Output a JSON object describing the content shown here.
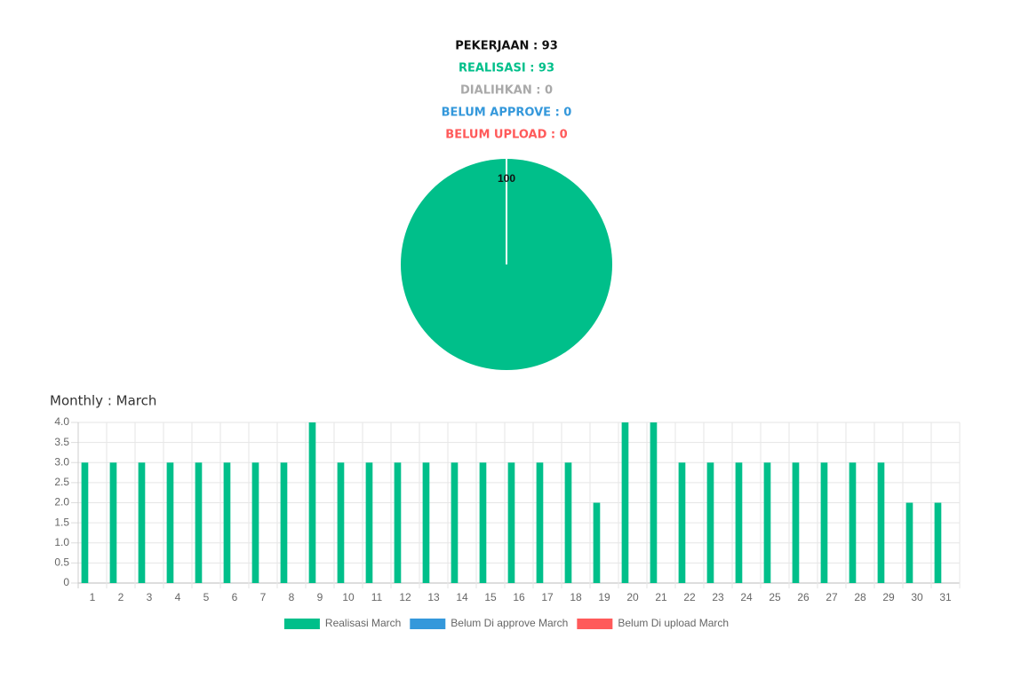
{
  "summary": [
    {
      "text": "PEKERJAAN : 93",
      "color": "#111111"
    },
    {
      "text": "REALISASI : 93",
      "color": "#00bf8a"
    },
    {
      "text": "DIALIHKAN : 0",
      "color": "#a9a9a9"
    },
    {
      "text": "BELUM APPROVE : 0",
      "color": "#3498db"
    },
    {
      "text": "BELUM UPLOAD : 0",
      "color": "#ff5a5a"
    }
  ],
  "chart_data": [
    {
      "type": "pie",
      "values": [
        100
      ],
      "colors": [
        "#00bf8a"
      ]
    },
    {
      "type": "bar",
      "title": "Monthly : March",
      "categories": [
        "1",
        "2",
        "3",
        "4",
        "5",
        "6",
        "7",
        "8",
        "9",
        "10",
        "11",
        "12",
        "13",
        "14",
        "15",
        "16",
        "17",
        "18",
        "19",
        "20",
        "21",
        "22",
        "23",
        "24",
        "25",
        "26",
        "27",
        "28",
        "29",
        "30",
        "31"
      ],
      "series": [
        {
          "name": "Realisasi March",
          "color": "#00bf8a",
          "values": [
            3,
            3,
            3,
            3,
            3,
            3,
            3,
            3,
            4,
            3,
            3,
            3,
            3,
            3,
            3,
            3,
            3,
            3,
            2,
            4,
            4,
            3,
            3,
            3,
            3,
            3,
            3,
            3,
            3,
            2,
            2
          ]
        },
        {
          "name": "Belum Di approve March",
          "color": "#3498db",
          "values": [
            0,
            0,
            0,
            0,
            0,
            0,
            0,
            0,
            0,
            0,
            0,
            0,
            0,
            0,
            0,
            0,
            0,
            0,
            0,
            0,
            0,
            0,
            0,
            0,
            0,
            0,
            0,
            0,
            0,
            0,
            0
          ]
        },
        {
          "name": "Belum Di upload March",
          "color": "#ff5a5a",
          "values": [
            0,
            0,
            0,
            0,
            0,
            0,
            0,
            0,
            0,
            0,
            0,
            0,
            0,
            0,
            0,
            0,
            0,
            0,
            0,
            0,
            0,
            0,
            0,
            0,
            0,
            0,
            0,
            0,
            0,
            0,
            0
          ]
        }
      ],
      "ylim": [
        0,
        4
      ],
      "yticks": [
        0,
        0.5,
        {
          "value": 1,
          "label": "1.0"
        },
        1.5,
        {
          "value": 2,
          "label": "2.0"
        },
        2.5,
        {
          "value": 3,
          "label": "3.0"
        },
        3.5,
        {
          "value": 4,
          "label": "4.0"
        }
      ],
      "grid": true,
      "legend": "bottom"
    }
  ]
}
